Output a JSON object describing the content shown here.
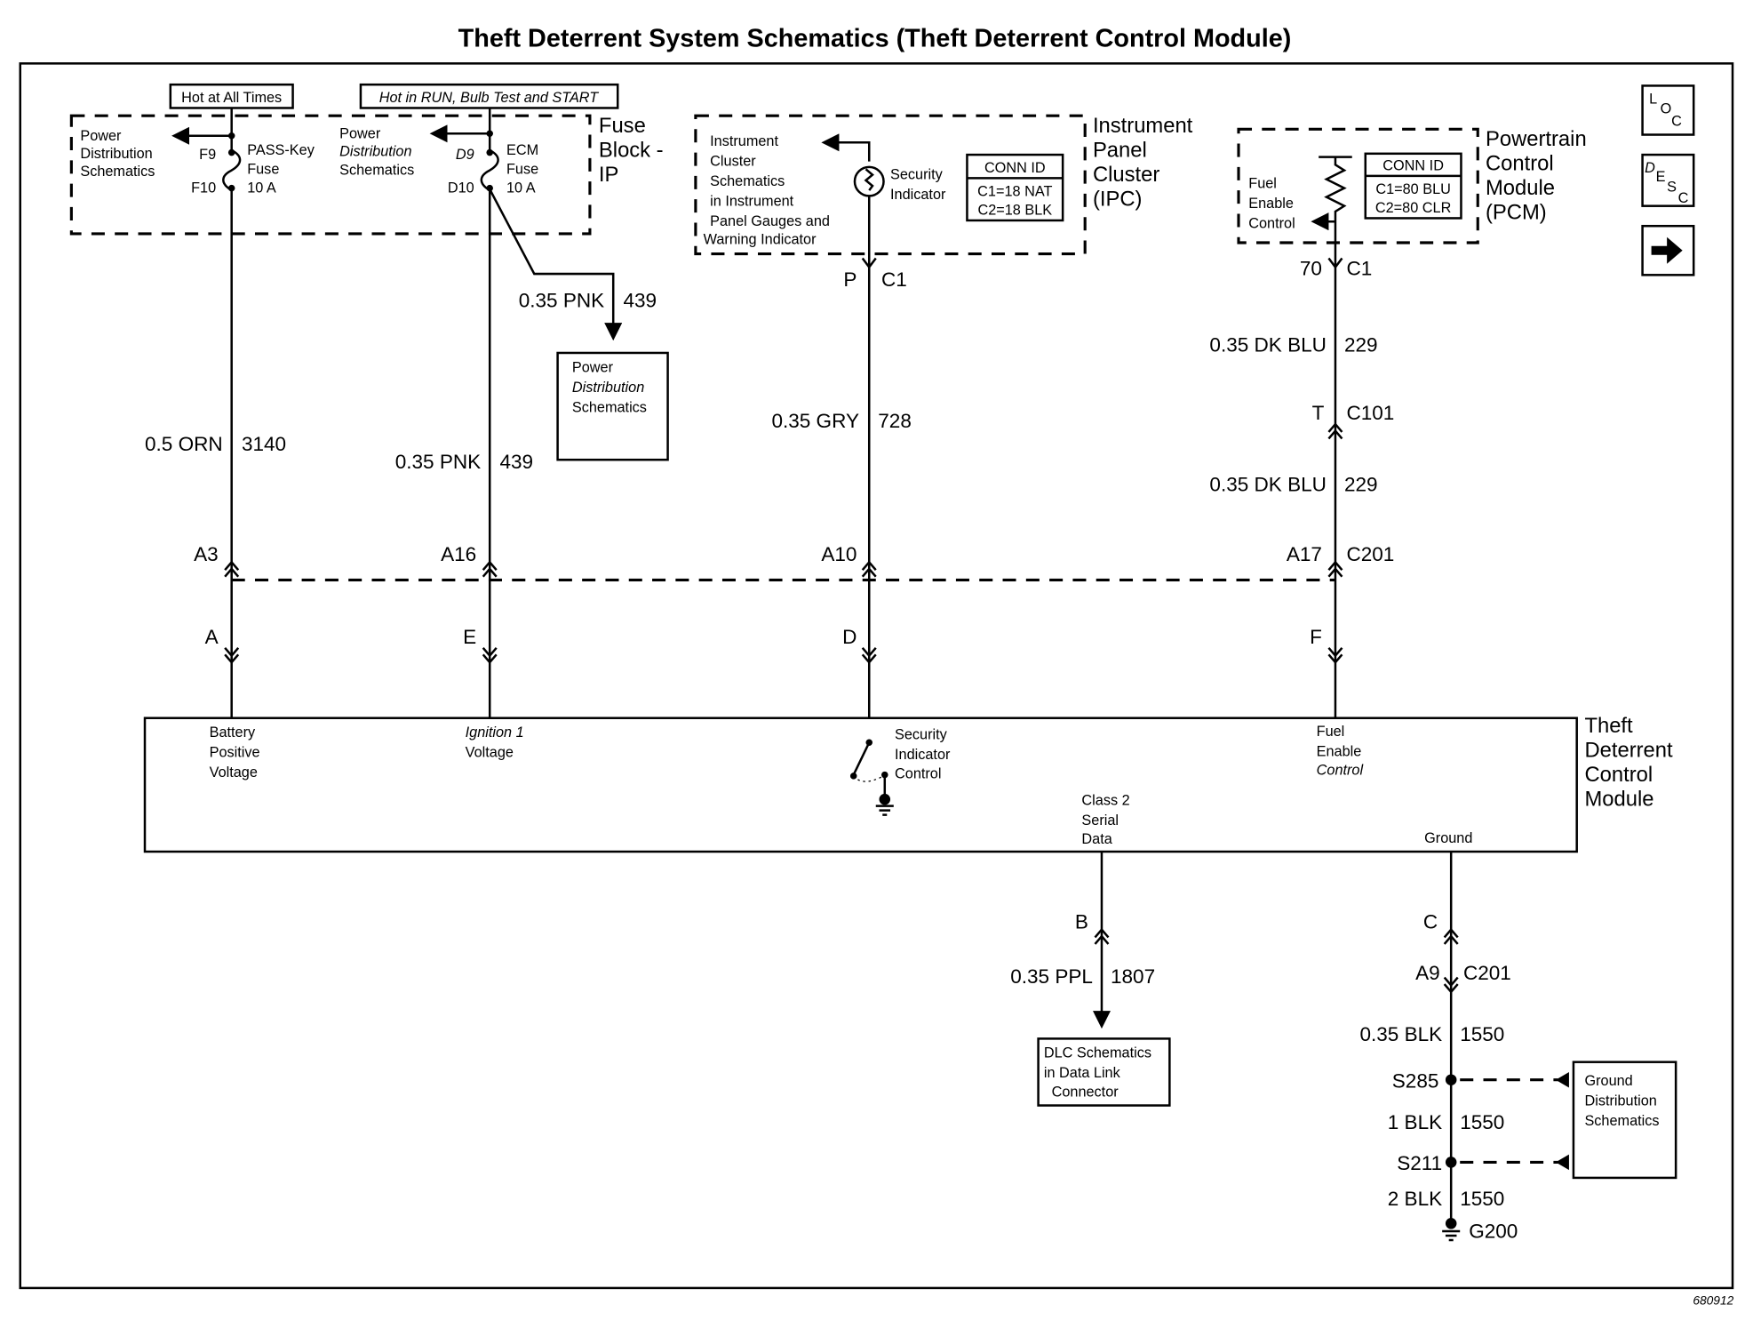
{
  "title": "Theft Deterrent System Schematics (Theft Deterrent Control Module)",
  "figure_code": "680912",
  "nav_icons": {
    "loc": [
      "L",
      "O",
      "C"
    ],
    "desc": [
      "D",
      "E",
      "S",
      "C"
    ],
    "next": "arrow-right-icon"
  },
  "fuse_block": {
    "label": [
      "Fuse",
      "Block -",
      "IP"
    ],
    "hot_always": "Hot at All Times",
    "hot_run": "Hot in RUN, Bulb Test and START",
    "pd_left": [
      "Power",
      "Distribution",
      "Schematics"
    ],
    "pd_right": [
      "Power",
      "Distribution",
      "Schematics"
    ],
    "f9": "F9",
    "f10": "F10",
    "pass_fuse": [
      "PASS-Key",
      "Fuse",
      "10 A"
    ],
    "d9": "D9",
    "d10": "D10",
    "ecm_fuse": [
      "ECM",
      "Fuse",
      "10 A"
    ]
  },
  "branch": {
    "wire": "0.35 PNK",
    "circuit": "439",
    "box": [
      "Power",
      "Distribution",
      "Schematics"
    ]
  },
  "ipc": {
    "label": [
      "Instrument",
      "Panel",
      "Cluster",
      "(IPC)"
    ],
    "ref": [
      "Instrument",
      "Cluster",
      "Schematics",
      "in Instrument",
      "Panel Gauges and",
      "Warning Indicator"
    ],
    "indicator": [
      "Security",
      "Indicator"
    ],
    "conn": [
      "CONN ID",
      "C1=18 NAT",
      "C2=18 BLK"
    ],
    "pin": "P",
    "connector": "C1"
  },
  "pcm": {
    "label": [
      "Powertrain",
      "Control",
      "Module",
      "(PCM)"
    ],
    "fuel": [
      "Fuel",
      "Enable",
      "Control"
    ],
    "conn": [
      "CONN ID",
      "C1=80 BLU",
      "C2=80 CLR"
    ],
    "pin": "70",
    "connector": "C1"
  },
  "wires": {
    "w1": {
      "wire": "0.5 ORN",
      "circuit": "3140",
      "pin": "A3",
      "mod_pin": "A"
    },
    "w2": {
      "wire": "0.35 PNK",
      "circuit": "439",
      "pin": "A16",
      "mod_pin": "E"
    },
    "w3": {
      "wire": "0.35 GRY",
      "circuit": "728",
      "pin": "A10",
      "mod_pin": "D"
    },
    "w4": {
      "wire_a": "0.35 DK BLU",
      "circuit_a": "229",
      "t_pin": "T",
      "t_conn": "C101",
      "wire_b": "0.35 DK BLU",
      "circuit_b": "229",
      "pin": "A17",
      "connector": "C201",
      "mod_pin": "F"
    }
  },
  "module": {
    "label": [
      "Theft",
      "Deterrent",
      "Control",
      "Module"
    ],
    "battery": [
      "Battery",
      "Positive",
      "Voltage"
    ],
    "ignition": [
      "Ignition 1",
      "Voltage"
    ],
    "security": [
      "Security",
      "Indicator",
      "Control"
    ],
    "fuel": [
      "Fuel",
      "Enable",
      "Control"
    ],
    "serial": [
      "Class 2",
      "Serial",
      "Data"
    ],
    "ground": "Ground"
  },
  "serial_wire": {
    "pin": "B",
    "wire": "0.35 PPL",
    "circuit": "1807",
    "box": [
      "DLC Schematics",
      "in Data Link",
      "Connector"
    ]
  },
  "ground_wire": {
    "pin": "C",
    "pin2": "A9",
    "connector": "C201",
    "seg1": {
      "wire": "0.35 BLK",
      "circuit": "1550"
    },
    "splice1": "S285",
    "seg2": {
      "wire": "1 BLK",
      "circuit": "1550"
    },
    "splice2": "S211",
    "seg3": {
      "wire": "2 BLK",
      "circuit": "1550"
    },
    "ground": "G200",
    "box": [
      "Ground",
      "Distribution",
      "Schematics"
    ]
  }
}
